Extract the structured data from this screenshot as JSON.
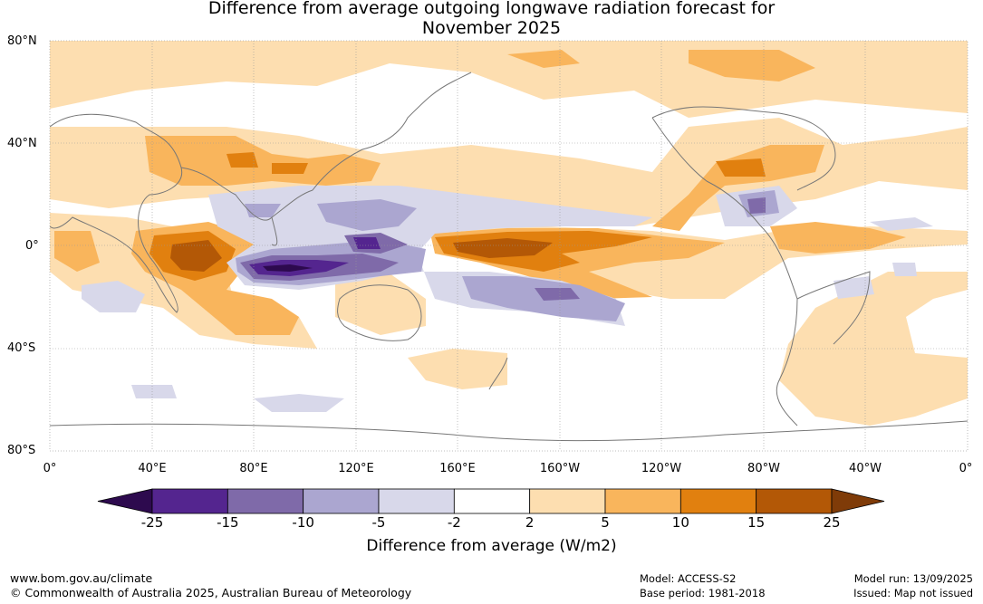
{
  "title_line1": "Difference from average outgoing longwave radiation forecast for",
  "title_line2": "November 2025",
  "lat_labels": [
    "80°N",
    "40°N",
    "0°",
    "40°S",
    "80°S"
  ],
  "lon_labels": [
    "0°",
    "40°E",
    "80°E",
    "120°E",
    "160°E",
    "160°W",
    "120°W",
    "80°W",
    "40°W",
    "0°"
  ],
  "colorbar": {
    "ticks": [
      "-25",
      "-15",
      "-10",
      "-5",
      "-2",
      "2",
      "5",
      "10",
      "15",
      "25"
    ],
    "colors": [
      "#2d0a4e",
      "#54258f",
      "#7f6aa9",
      "#aba6d0",
      "#d8d8ea",
      "#ffffff",
      "#fddeb0",
      "#f9b55c",
      "#e1800f",
      "#b35806",
      "#7f3b08"
    ],
    "title": "Difference from average (W/m2)"
  },
  "footer": {
    "url": "www.bom.gov.au/climate",
    "copyright": "© Commonwealth of Australia 2025, Australian Bureau of Meteorology",
    "model": "Model: ACCESS-S2",
    "base_period": "Base period: 1981-2018",
    "model_run": "Model run: 13/09/2025",
    "issued": "Issued: Map not issued"
  }
}
